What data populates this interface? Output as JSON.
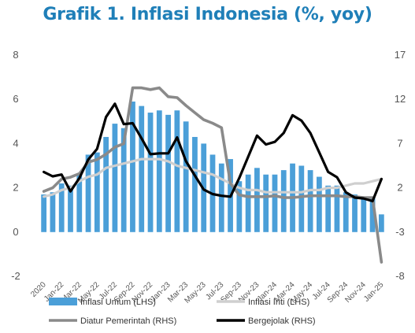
{
  "title": "Grafik 1. Inflasi Indonesia (%, yoy)",
  "colors": {
    "title": "#1f7fb8",
    "bars": "#4b9fd8",
    "core": "#cfcfcf",
    "administered": "#8a8a8a",
    "volatile": "#000000",
    "axis_text": "#555555"
  },
  "chart_data": {
    "type": "bar",
    "x": [
      "2020",
      "",
      "Jan-22",
      "",
      "Mar-22",
      "",
      "May-22",
      "",
      "Jul-22",
      "",
      "Sep-22",
      "",
      "Nov-22",
      "",
      "Jan-23",
      "",
      "Mar-23",
      "",
      "May-23",
      "",
      "Jul-23",
      "",
      "Sep-23",
      "",
      "Nov-23",
      "",
      "Jan-24",
      "",
      "Mar-24",
      "",
      "May-24",
      "",
      "Jul-24",
      "",
      "Sep-24",
      "",
      "Nov-24",
      "",
      "Jan-25"
    ],
    "ylim_left": [
      -2,
      8
    ],
    "yticks_left": [
      -2,
      0,
      2,
      4,
      6,
      8
    ],
    "ylim_right": [
      -8,
      17
    ],
    "yticks_right": [
      -8,
      -3,
      2,
      7,
      12,
      17
    ],
    "grid": false,
    "legend_position": "bottom",
    "series": [
      {
        "name": "Inflasi Umum (LHS)",
        "type": "bar",
        "axis": "left",
        "values": [
          1.7,
          1.8,
          2.2,
          2.1,
          2.6,
          3.5,
          3.6,
          4.3,
          4.9,
          4.7,
          5.9,
          5.7,
          5.4,
          5.5,
          5.3,
          5.5,
          5.0,
          4.3,
          4.0,
          3.5,
          3.1,
          3.3,
          2.3,
          2.6,
          2.9,
          2.6,
          2.6,
          2.8,
          3.1,
          3.0,
          2.8,
          2.5,
          2.1,
          2.1,
          1.8,
          1.7,
          1.6,
          1.6,
          0.8
        ]
      },
      {
        "name": "Inflasi Inti (LHS)",
        "type": "line",
        "axis": "left",
        "values": [
          1.6,
          1.7,
          1.9,
          2.0,
          2.3,
          2.5,
          2.6,
          2.9,
          3.0,
          3.1,
          3.2,
          3.3,
          3.3,
          3.3,
          3.2,
          3.0,
          2.9,
          2.8,
          2.7,
          2.6,
          2.4,
          2.2,
          2.0,
          1.9,
          1.9,
          1.8,
          1.8,
          1.8,
          1.8,
          1.8,
          1.9,
          1.9,
          2.0,
          2.0,
          2.1,
          2.2,
          2.2,
          2.3,
          2.4
        ]
      },
      {
        "name": "Diatur Pemerintah (RHS)",
        "type": "line",
        "axis": "right",
        "values": [
          1.6,
          2.0,
          3.0,
          3.2,
          3.6,
          4.9,
          5.2,
          5.8,
          6.6,
          7.0,
          13.3,
          13.3,
          13.1,
          13.3,
          12.3,
          12.2,
          11.3,
          10.5,
          9.7,
          9.3,
          8.8,
          2.5,
          1.2,
          1.0,
          1.0,
          1.0,
          1.1,
          0.9,
          0.9,
          1.0,
          1.1,
          1.1,
          1.1,
          1.1,
          1.0,
          1.0,
          0.9,
          0.9,
          -6.4
        ]
      },
      {
        "name": "Bergejolak (RHS)",
        "type": "line",
        "axis": "right",
        "values": [
          3.8,
          3.3,
          3.5,
          1.6,
          3.1,
          5.2,
          6.4,
          10.0,
          11.5,
          9.2,
          9.3,
          7.6,
          5.8,
          5.9,
          5.9,
          7.7,
          5.0,
          3.4,
          1.8,
          1.3,
          1.1,
          1.0,
          3.1,
          5.5,
          7.9,
          6.9,
          7.2,
          8.2,
          10.2,
          9.6,
          8.2,
          6.0,
          3.8,
          3.2,
          1.5,
          0.9,
          0.8,
          0.5,
          3.0
        ]
      }
    ]
  }
}
